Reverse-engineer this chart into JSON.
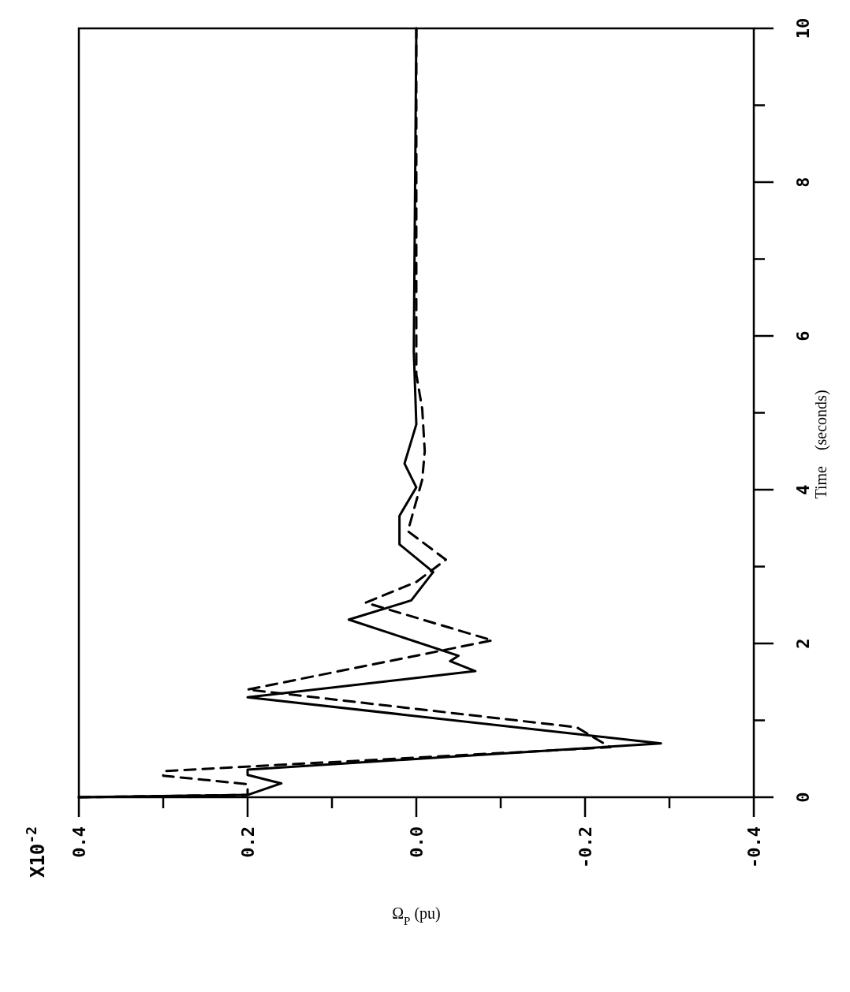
{
  "chart_data": {
    "type": "line",
    "ylabel": "Time    (seconds)",
    "xlabel": "Ω$_{P}$ (pu)",
    "annotations": [
      "X10$^{-2}$"
    ],
    "ylim": [
      0,
      10
    ],
    "xlim": [
      0.4,
      -0.4
    ],
    "yticks": [
      0,
      {
        "value": 1,
        "label": null
      },
      2,
      {
        "value": 3,
        "label": null
      },
      4,
      {
        "value": 5,
        "label": null
      },
      6,
      {
        "value": 7,
        "label": null
      },
      8,
      {
        "value": 9,
        "label": null
      },
      10
    ],
    "xticks": [
      0.4,
      {
        "value": 0.3,
        "label": null
      },
      0.2,
      {
        "value": 0.1,
        "label": null
      },
      {
        "value": 0,
        "label": "0.0"
      },
      {
        "value": -0.1,
        "label": null
      },
      -0.2,
      {
        "value": -0.3,
        "label": null
      },
      -0.4
    ],
    "grid": false,
    "marker": "none",
    "series": [
      {
        "color": "#000000",
        "line_style": "solid",
        "values": [
          0,
          0.03,
          0.18,
          0.29,
          0.36,
          0.7,
          1.3,
          1.64,
          1.77,
          1.84,
          2.31,
          2.56,
          2.93,
          3.29,
          3.66,
          4.03,
          4.34,
          4.85,
          5.8,
          10
        ],
        "x": [
          0.4,
          0.2,
          0.16,
          0.2,
          0.2,
          -0.29,
          0.2,
          -0.07,
          -0.04,
          -0.05,
          0.08,
          0.006,
          -0.02,
          0.02,
          0.02,
          0,
          0.014,
          0,
          0.003,
          0
        ]
      },
      {
        "color": "#000000",
        "line_style": "dashed",
        "values": [
          0,
          0.03,
          0.17,
          0.28,
          0.34,
          0.65,
          0.91,
          1.4,
          2.04,
          2.53,
          2.8,
          3.09,
          3.46,
          4.13,
          4.5,
          5.05,
          5.5,
          10
        ],
        "x": [
          0.4,
          0.2,
          0.2,
          0.3,
          0.3,
          -0.23,
          -0.19,
          0.2,
          -0.09,
          0.06,
          0,
          -0.035,
          0.01,
          -0.007,
          -0.01,
          -0.007,
          0,
          0
        ]
      }
    ]
  }
}
